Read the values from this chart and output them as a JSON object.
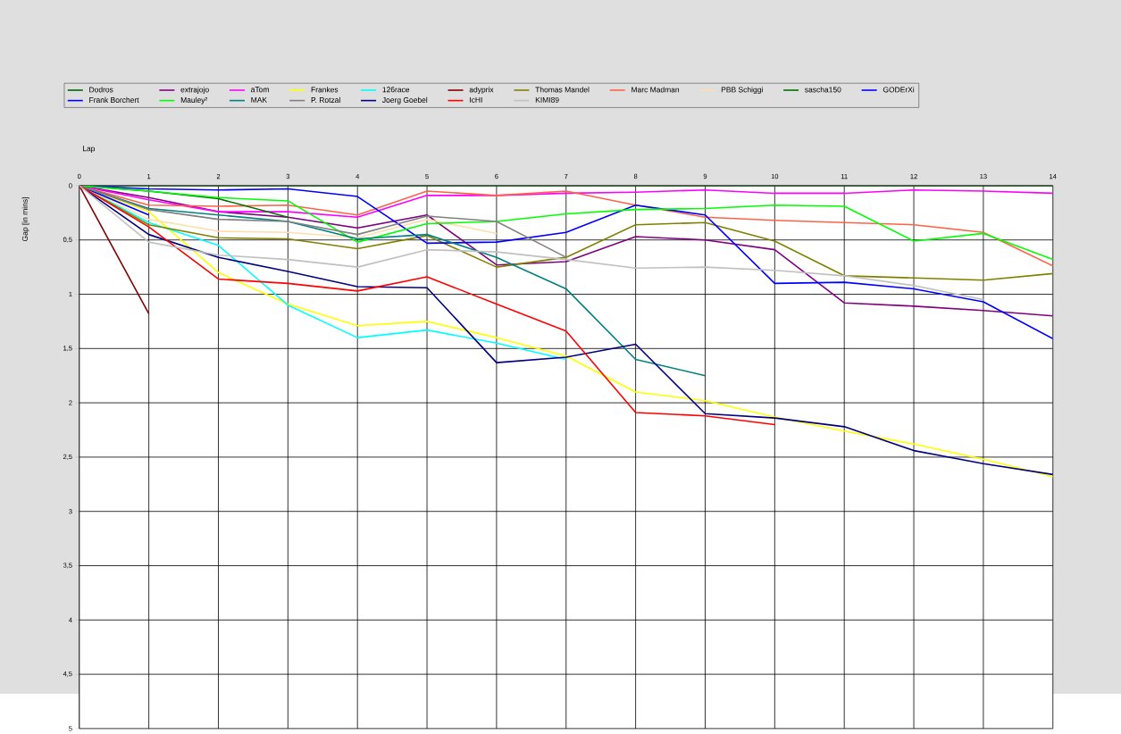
{
  "chart_data": {
    "type": "line",
    "xlabel": "Lap",
    "ylabel": "Gap [in mins]",
    "x": [
      0,
      1,
      2,
      3,
      4,
      5,
      6,
      7,
      8,
      9,
      10,
      11,
      12,
      13,
      14
    ],
    "xlim": [
      0,
      14
    ],
    "xticks": [
      0,
      1,
      2,
      3,
      4,
      5,
      6,
      7,
      8,
      9,
      10,
      11,
      12,
      13,
      14
    ],
    "ylim": [
      5,
      0
    ],
    "yticks": [
      0,
      {
        "value": 0.5,
        "label": "0,5"
      },
      1,
      {
        "value": 1.5,
        "label": "1,5"
      },
      2,
      {
        "value": 2.5,
        "label": "2,5"
      },
      3,
      {
        "value": 3.5,
        "label": "3,5"
      },
      4,
      {
        "value": 4.5,
        "label": "4,5"
      },
      5
    ],
    "grid": true,
    "legend": "top",
    "series": [
      {
        "name": "Dodros",
        "color": "#006400",
        "values": [
          0,
          0,
          0,
          0,
          0,
          0,
          0,
          0,
          0,
          0,
          0,
          0,
          0,
          0,
          0
        ]
      },
      {
        "name": "extrajojo",
        "color": "#800080",
        "values": [
          0,
          0.11,
          0.24,
          0.29,
          0.39,
          0.27,
          0.73,
          0.7,
          0.47,
          0.5,
          0.59,
          1.08,
          1.11,
          1.15,
          1.2
        ]
      },
      {
        "name": "aTom",
        "color": "#ff00ff",
        "values": [
          0,
          0.13,
          0.24,
          0.24,
          0.29,
          0.09,
          0.09,
          0.07,
          0.06,
          0.04,
          0.07,
          0.07,
          0.04,
          0.05,
          0.07
        ]
      },
      {
        "name": "Frankes",
        "color": "#ffff00",
        "values": [
          0,
          0.24,
          0.8,
          1.09,
          1.29,
          1.25,
          1.4,
          1.57,
          1.9,
          1.98,
          2.13,
          2.26,
          2.38,
          2.52,
          2.68
        ]
      },
      {
        "name": "126race",
        "color": "#00ffff",
        "values": [
          0,
          0.34,
          0.55,
          1.1,
          1.4,
          1.33,
          1.45,
          1.6,
          null,
          null,
          null,
          null,
          null,
          null,
          null
        ]
      },
      {
        "name": "adyprix",
        "color": "#800000",
        "values": [
          0,
          1.18,
          null,
          null,
          null,
          null,
          null,
          null,
          null,
          null,
          null,
          null,
          null,
          null,
          null
        ]
      },
      {
        "name": "Thomas Mandel",
        "color": "#808000",
        "values": [
          0,
          0.36,
          0.48,
          0.49,
          0.58,
          0.46,
          0.75,
          0.66,
          0.36,
          0.34,
          0.51,
          0.83,
          0.85,
          0.87,
          0.81
        ]
      },
      {
        "name": "Marc Madman",
        "color": "#ff6347",
        "values": [
          0,
          0.18,
          0.19,
          0.18,
          0.27,
          0.05,
          0.09,
          0.05,
          0.18,
          0.29,
          0.32,
          0.34,
          0.36,
          0.43,
          0.74
        ]
      },
      {
        "name": "PBB Schiggi",
        "color": "#ffdead",
        "values": [
          0,
          0.31,
          0.42,
          0.43,
          0.48,
          0.31,
          0.44,
          null,
          null,
          null,
          null,
          null,
          null,
          null,
          null
        ]
      },
      {
        "name": "sascha150",
        "color": "#007000",
        "values": [
          0,
          0.05,
          0.12,
          0.29,
          null,
          null,
          null,
          null,
          null,
          null,
          null,
          null,
          null,
          null,
          null
        ]
      },
      {
        "name": "GODErXi",
        "color": "#0000ff",
        "values": [
          0,
          0.27,
          null,
          null,
          null,
          null,
          null,
          null,
          null,
          null,
          null,
          null,
          null,
          null,
          null
        ]
      },
      {
        "name": "Frank Borchert",
        "color": "#0000ff",
        "values": [
          0,
          0.03,
          0.04,
          0.03,
          0.1,
          0.53,
          0.52,
          0.43,
          0.18,
          0.27,
          0.9,
          0.89,
          0.95,
          1.07,
          1.41
        ]
      },
      {
        "name": "Mauley²",
        "color": "#00ff00",
        "values": [
          0,
          0.05,
          0.11,
          0.14,
          0.52,
          0.35,
          0.33,
          0.26,
          0.22,
          0.21,
          0.18,
          0.19,
          0.51,
          0.44,
          0.68
        ]
      },
      {
        "name": "MAK",
        "color": "#008080",
        "values": [
          0,
          0.21,
          0.27,
          0.33,
          0.49,
          0.45,
          0.66,
          0.95,
          1.6,
          1.75,
          null,
          null,
          null,
          null,
          null
        ]
      },
      {
        "name": "P. Rotzal",
        "color": "#808080",
        "values": [
          0,
          0.22,
          0.31,
          0.33,
          0.45,
          0.28,
          0.33,
          0.66,
          null,
          null,
          null,
          null,
          null,
          null,
          null
        ]
      },
      {
        "name": "Joerg Goebel",
        "color": "#000080",
        "values": [
          0,
          0.45,
          0.66,
          0.79,
          0.93,
          0.94,
          1.63,
          1.58,
          1.46,
          2.1,
          2.14,
          2.22,
          2.44,
          2.56,
          2.66
        ]
      },
      {
        "name": "IcHI",
        "color": "#ff0000",
        "values": [
          0,
          0.38,
          0.86,
          0.9,
          0.97,
          0.84,
          1.09,
          1.34,
          2.09,
          2.12,
          2.2,
          null,
          null,
          null,
          null
        ]
      },
      {
        "name": "KIMI89",
        "color": "#c0c0c0",
        "values": [
          0,
          0.52,
          0.64,
          0.68,
          0.75,
          0.59,
          0.61,
          0.68,
          0.76,
          0.75,
          0.78,
          0.83,
          0.92,
          1.05,
          null
        ]
      }
    ]
  }
}
